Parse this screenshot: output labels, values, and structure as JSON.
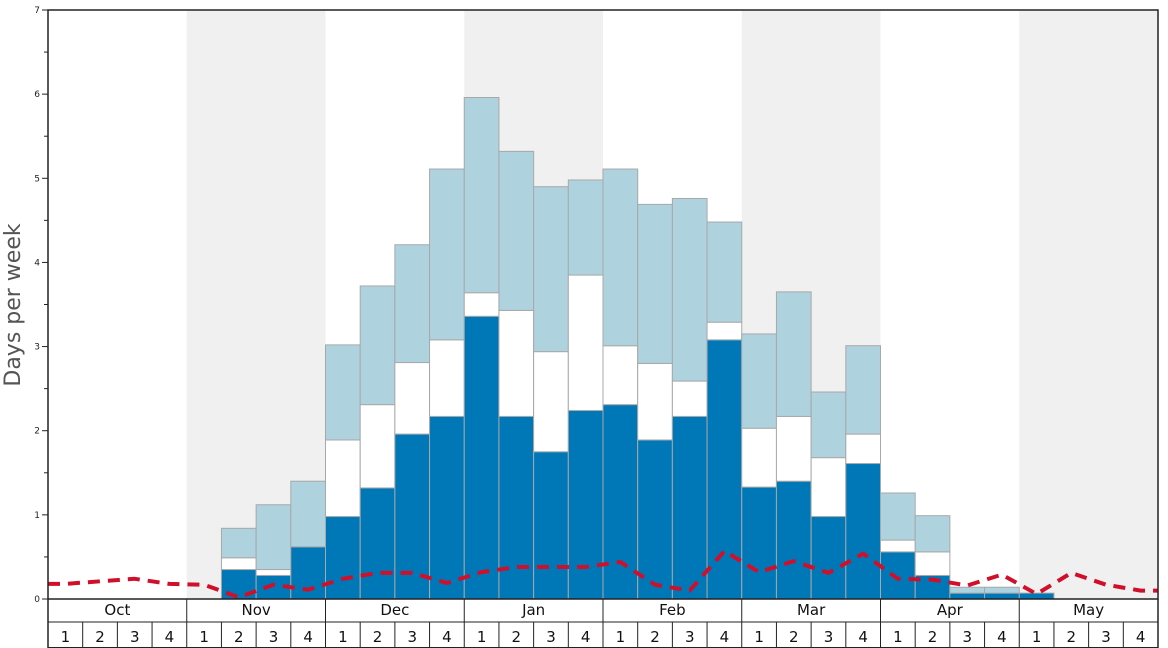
{
  "chart_data": {
    "type": "bar",
    "ylabel": "Days per week",
    "xlabel": "",
    "ylim": [
      0,
      7
    ],
    "yticks": [
      "0",
      "1",
      "2",
      "3",
      "4",
      "5",
      "6",
      "7"
    ],
    "months": [
      "Oct",
      "Nov",
      "Dec",
      "Jan",
      "Feb",
      "Mar",
      "Apr",
      "May"
    ],
    "weeks": [
      "1",
      "2",
      "3",
      "4"
    ],
    "stacked": true,
    "series": [
      {
        "values": [
          0,
          0,
          0,
          0,
          0,
          0.35,
          0.28,
          0.62,
          0.98,
          1.32,
          1.96,
          2.17,
          3.36,
          2.17,
          1.75,
          2.24,
          2.31,
          1.89,
          2.17,
          3.08,
          1.33,
          1.4,
          0.98,
          1.61,
          0.56,
          0.28,
          0.07,
          0.07,
          0.07,
          0,
          0,
          0
        ]
      },
      {
        "values": [
          0,
          0,
          0,
          0,
          0,
          0.14,
          0.07,
          0,
          0.91,
          0.99,
          0.85,
          0.91,
          0.28,
          1.26,
          1.19,
          1.61,
          0.7,
          0.91,
          0.42,
          0.21,
          0.7,
          0.77,
          0.7,
          0.35,
          0.14,
          0.28,
          0,
          0,
          0,
          0,
          0,
          0
        ]
      },
      {
        "values": [
          0,
          0,
          0,
          0,
          0,
          0.35,
          0.77,
          0.78,
          1.13,
          1.41,
          1.4,
          2.03,
          2.32,
          1.89,
          1.96,
          1.13,
          2.1,
          1.89,
          2.17,
          1.19,
          1.12,
          1.48,
          0.78,
          1.05,
          0.56,
          0.43,
          0.07,
          0.07,
          0,
          0,
          0,
          0
        ]
      },
      {
        "style": "dashed",
        "values": [
          0.18,
          0.21,
          0.24,
          0.18,
          0.17,
          0.02,
          0.17,
          0.11,
          0.24,
          0.31,
          0.31,
          0.19,
          0.32,
          0.38,
          0.38,
          0.38,
          0.44,
          0.17,
          0.1,
          0.57,
          0.32,
          0.45,
          0.31,
          0.54,
          0.24,
          0.23,
          0.16,
          0.29,
          0.06,
          0.31,
          0.17,
          0.1
        ]
      }
    ],
    "shaded_months": [
      "Nov",
      "Jan",
      "Mar",
      "May"
    ],
    "colors": {
      "series1": "#0077b6",
      "series2": "#ffffff",
      "series3": "#aed3df",
      "line": "#d0102a",
      "shade": "#f0f0f0",
      "bar_stroke": "#a8a8a8",
      "axis": "#222222",
      "ylabel": "#555555"
    },
    "grid": false,
    "legend": "none"
  }
}
